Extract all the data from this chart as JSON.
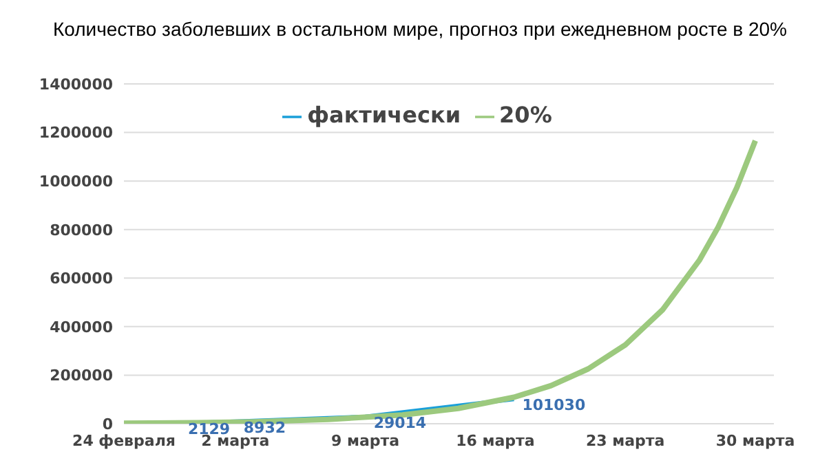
{
  "chart_data": {
    "type": "line",
    "title": "Количество заболевших в остальном мире, прогноз при ежедневном росте в 20%",
    "xlim": [
      "--02-24",
      "--03-31"
    ],
    "xticks": [
      {
        "value": "--02-24",
        "label": "24 февраля"
      },
      {
        "value": "--03-02",
        "label": "2 марта"
      },
      {
        "value": "--03-09",
        "label": "9 марта"
      },
      {
        "value": "--03-16",
        "label": "16 марта"
      },
      {
        "value": "--03-23",
        "label": "23 марта"
      },
      {
        "value": "--03-30",
        "label": "30 марта"
      }
    ],
    "ylim": [
      0,
      1400000
    ],
    "yticks": [
      0,
      200000,
      400000,
      600000,
      800000,
      1000000,
      1200000,
      1400000
    ],
    "grid": "y",
    "legend": "top",
    "marker": "none",
    "line_style": "solid",
    "series": [
      {
        "name": "фактически",
        "color": "#1a9fd8",
        "x": [
          "--02-27",
          "--03-02",
          "--03-09",
          "--03-17"
        ],
        "values": [
          2129,
          8932,
          29014,
          101030
        ],
        "value_labels": [
          "2129",
          "8932",
          "29014",
          "101030"
        ]
      },
      {
        "name": "20%",
        "color": "#9cc97e",
        "x": [
          "--02-24",
          "--02-28",
          "--03-03",
          "--03-07",
          "--03-11",
          "--03-14",
          "--03-17",
          "--03-19",
          "--03-21",
          "--03-23",
          "--03-25",
          "--03-27",
          "--03-28",
          "--03-29",
          "--03-30"
        ],
        "values": [
          2000,
          4000,
          8000,
          18000,
          36000,
          63000,
          109000,
          157000,
          226000,
          325000,
          469000,
          675000,
          810000,
          972000,
          1166000
        ]
      }
    ]
  }
}
